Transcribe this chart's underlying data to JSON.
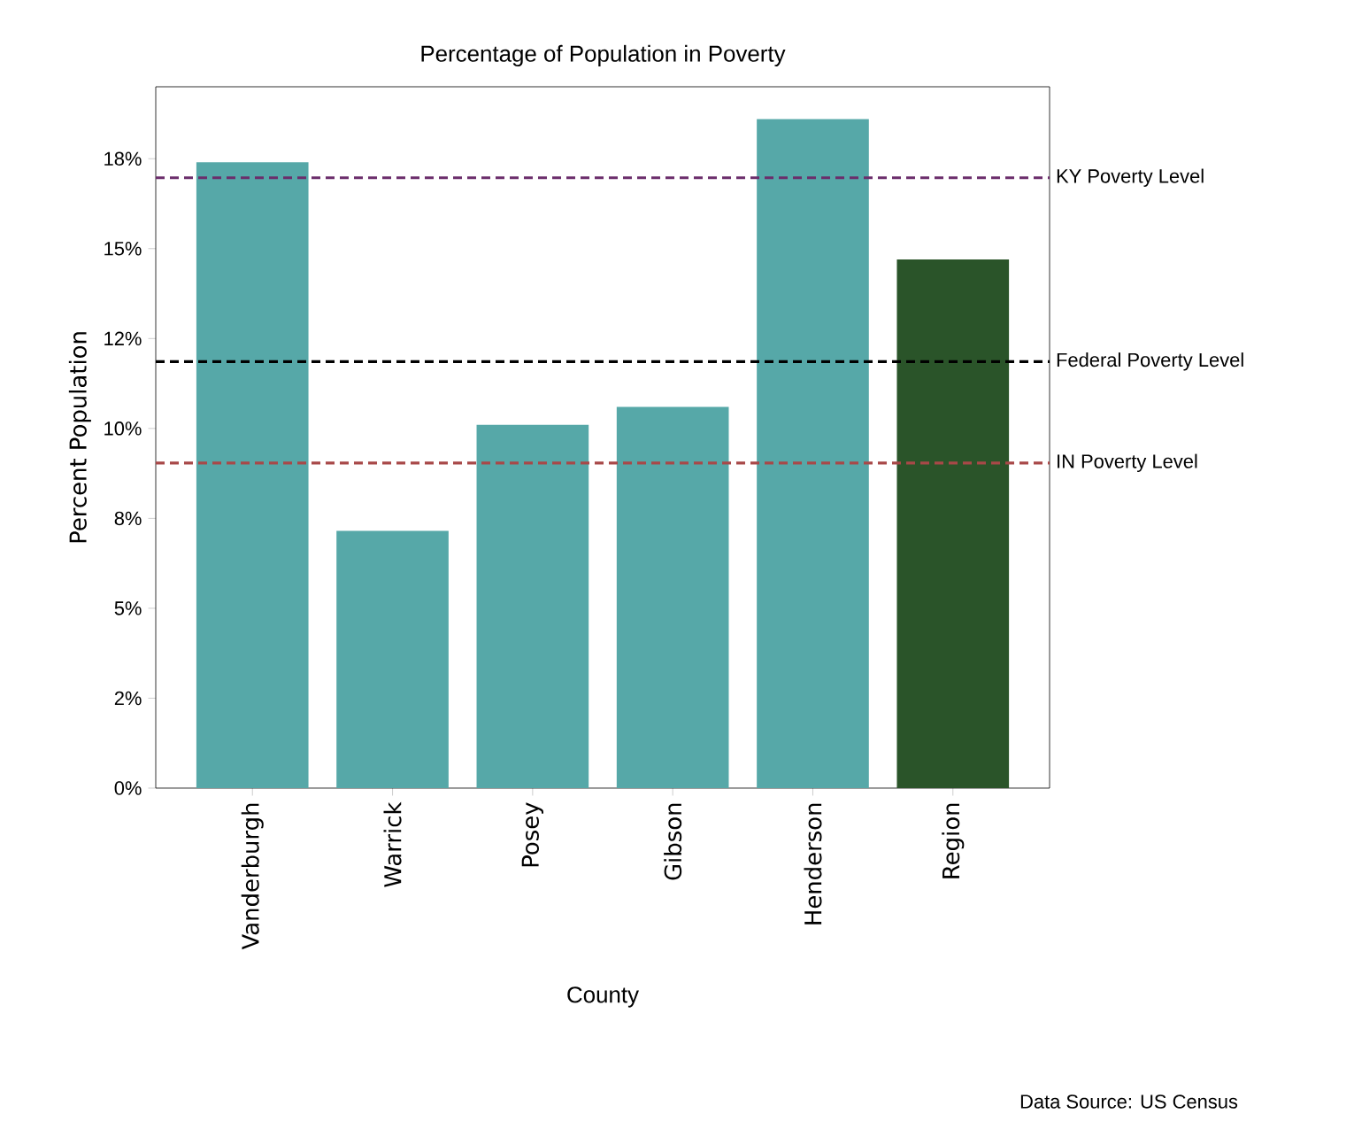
{
  "chart_data": {
    "type": "bar",
    "title": "Percentage of Population in Poverty",
    "xlabel": "County",
    "ylabel": "Percent Population",
    "categories": [
      "Vanderburgh",
      "Warrick",
      "Posey",
      "Gibson",
      "Henderson",
      "Region"
    ],
    "values": [
      17.4,
      7.15,
      10.1,
      10.6,
      18.6,
      14.7
    ],
    "colors": [
      "#56a8a8",
      "#56a8a8",
      "#56a8a8",
      "#56a8a8",
      "#56a8a8",
      "#2a5429"
    ],
    "ylim": [
      0,
      19.5
    ],
    "yticks": [
      {
        "value": 0,
        "label": "0%"
      },
      {
        "value": 2.5,
        "label": "2%"
      },
      {
        "value": 5,
        "label": "5%"
      },
      {
        "value": 7.5,
        "label": "8%"
      },
      {
        "value": 10,
        "label": "10%"
      },
      {
        "value": 12.5,
        "label": "12%"
      },
      {
        "value": 15,
        "label": "15%"
      },
      {
        "value": 17.5,
        "label": "18%"
      }
    ],
    "ref_lines": [
      {
        "axis": "y",
        "value": 16.97,
        "label": "KY Poverty Level",
        "color": "#6b2d6b",
        "line_style": "dashed"
      },
      {
        "axis": "y",
        "value": 11.86,
        "label": "Federal Poverty Level",
        "color": "#000000",
        "line_style": "dashed"
      },
      {
        "axis": "y",
        "value": 9.04,
        "label": "IN Poverty Level",
        "color": "#a84848",
        "line_style": "dashed"
      }
    ],
    "annotations": [
      "Data Source: US Census"
    ]
  }
}
